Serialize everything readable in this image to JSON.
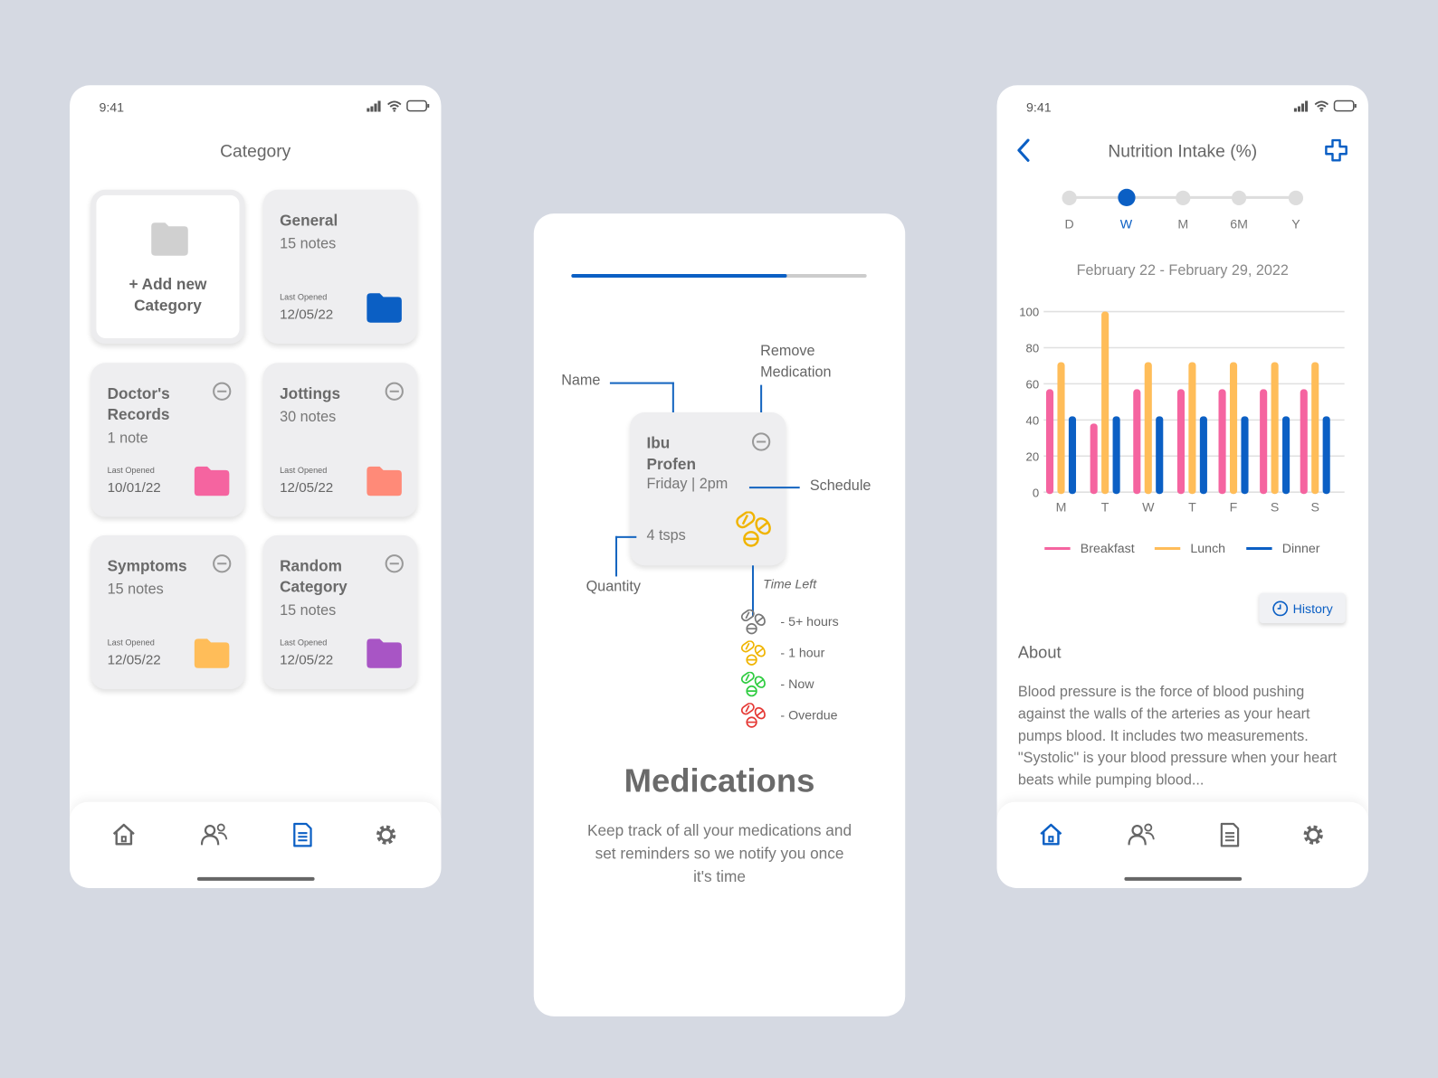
{
  "status": {
    "time": "9:41"
  },
  "colors": {
    "accent": "#0b5fc4",
    "pink": "#f564a0",
    "yellow": "#ffbd59",
    "coral": "#ff8a78",
    "purple": "#a855c5",
    "grey": "#d0d0d0"
  },
  "category_screen": {
    "title": "Category",
    "add_card": {
      "label": "+ Add new Category"
    },
    "cards": [
      {
        "name": "General",
        "count": "15 notes",
        "last_opened_label": "Last Opened",
        "date": "12/05/22",
        "folder_color": "#0b5fc4",
        "removable": false
      },
      {
        "name": "Doctor's Records",
        "count": "1 note",
        "last_opened_label": "Last Opened",
        "date": "10/01/22",
        "folder_color": "#f564a0",
        "removable": true
      },
      {
        "name": "Jottings",
        "count": "30 notes",
        "last_opened_label": "Last Opened",
        "date": "12/05/22",
        "folder_color": "#ff8a78",
        "removable": true
      },
      {
        "name": "Symptoms",
        "count": "15 notes",
        "last_opened_label": "Last Opened",
        "date": "12/05/22",
        "folder_color": "#ffbd59",
        "removable": true
      },
      {
        "name": "Random Category",
        "count": "15 notes",
        "last_opened_label": "Last Opened",
        "date": "12/05/22",
        "folder_color": "#a855c5",
        "removable": true
      }
    ],
    "nav": {
      "items": [
        "home-icon",
        "users-icon",
        "document-icon",
        "gear-icon"
      ],
      "active": "document-icon"
    }
  },
  "medications_screen": {
    "progress": 0.73,
    "labels": {
      "name": "Name",
      "remove": "Remove Medication",
      "schedule": "Schedule",
      "quantity": "Quantity",
      "time_left": "Time Left"
    },
    "card": {
      "name": "Ibu Profen",
      "schedule": "Friday | 2pm",
      "quantity": "4 tsps"
    },
    "legend": [
      {
        "label": "- 5+ hours",
        "color": "#777777"
      },
      {
        "label": "- 1 hour",
        "color": "#f0b400"
      },
      {
        "label": "- Now",
        "color": "#2ecc40"
      },
      {
        "label": "- Overdue",
        "color": "#e53935"
      }
    ],
    "heading": "Medications",
    "description": "Keep track of all your medications and set reminders so we notify you once it's time"
  },
  "nutrition_screen": {
    "title": "Nutrition Intake (%)",
    "ranges": [
      "D",
      "W",
      "M",
      "6M",
      "Y"
    ],
    "selected_range": "W",
    "date_range": "February 22 - February 29, 2022",
    "history_label": "History",
    "about_title": "About",
    "about_text": "Blood pressure is the force of blood pushing against the walls of the arteries as your heart pumps blood. It includes two measurements. \"Systolic\" is your blood pressure when your heart beats while pumping blood...",
    "nav": {
      "items": [
        "home-icon",
        "users-icon",
        "document-icon",
        "gear-icon"
      ],
      "active": "home-icon"
    }
  },
  "chart_data": {
    "type": "bar",
    "categories": [
      "M",
      "T",
      "W",
      "T",
      "F",
      "S",
      "S"
    ],
    "series": [
      {
        "name": "Breakfast",
        "color": "#f564a0",
        "values": [
          57,
          38,
          57,
          57,
          57,
          57,
          57
        ]
      },
      {
        "name": "Lunch",
        "color": "#ffbd59",
        "values": [
          72,
          100,
          72,
          72,
          72,
          72,
          72
        ]
      },
      {
        "name": "Dinner",
        "color": "#0b5fc4",
        "values": [
          42,
          42,
          42,
          42,
          42,
          42,
          42
        ]
      }
    ],
    "yticks": [
      0,
      20,
      40,
      60,
      80,
      100
    ],
    "ylim": [
      0,
      100
    ],
    "grid": true,
    "legend_position": "bottom"
  }
}
